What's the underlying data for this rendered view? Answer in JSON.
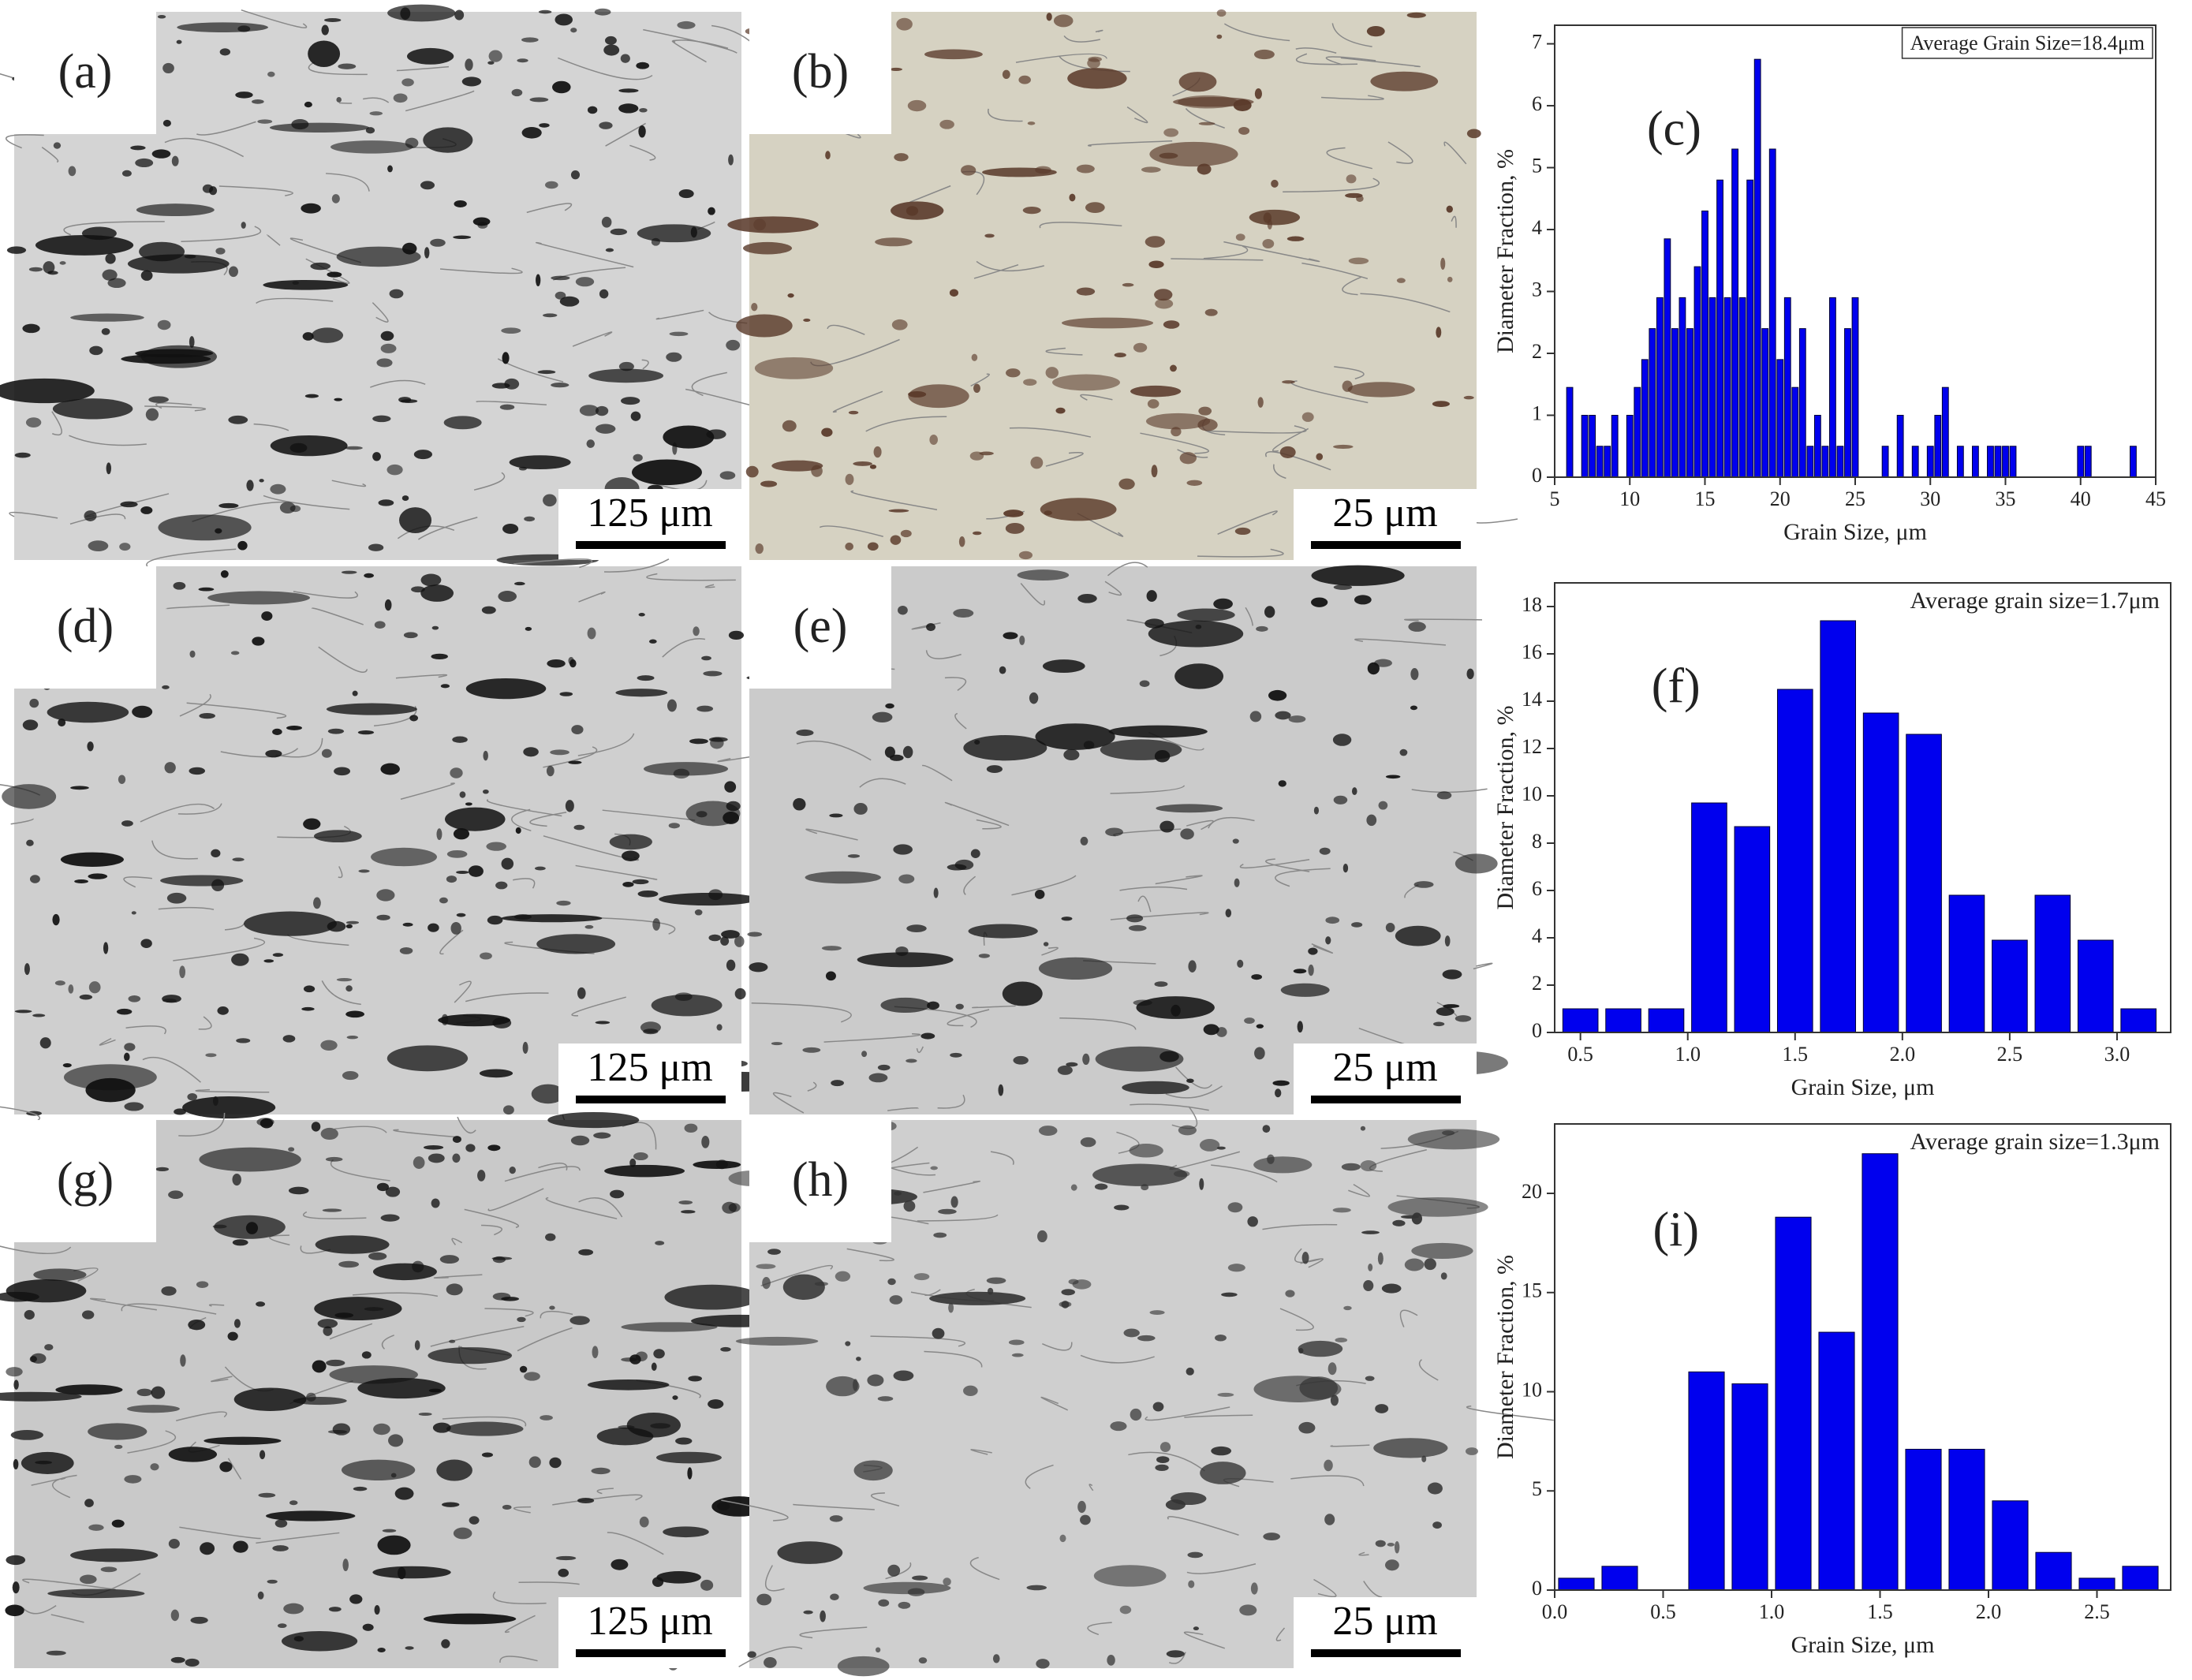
{
  "micrographs": [
    {
      "label": "(a)",
      "scale_bar": "125 μm"
    },
    {
      "label": "(b)",
      "scale_bar": "25 μm"
    },
    {
      "label": "(d)",
      "scale_bar": "125 μm"
    },
    {
      "label": "(e)",
      "scale_bar": "25 μm"
    },
    {
      "label": "(g)",
      "scale_bar": "125 μm"
    },
    {
      "label": "(h)",
      "scale_bar": "25 μm"
    }
  ],
  "chart_data": [
    {
      "type": "bar",
      "panel_label": "(c)",
      "annotation": "Average Grain Size=18.4μm",
      "annotation_box": true,
      "xlabel": "Grain Size, μm",
      "ylabel": "Diameter Fraction, %",
      "color": "#0000ee",
      "x": [
        6,
        7,
        7.5,
        8,
        8.5,
        9,
        10,
        10.5,
        11,
        11.5,
        12,
        12.5,
        13,
        13.5,
        14,
        14.5,
        15,
        15.5,
        16,
        16.5,
        17,
        17.5,
        18,
        18.5,
        19,
        19.5,
        20,
        20.5,
        21,
        21.5,
        22,
        22.5,
        23,
        23.5,
        24,
        24.5,
        25,
        27,
        28,
        29,
        30,
        30.5,
        31,
        32,
        33,
        34,
        34.5,
        35,
        35.5,
        40,
        40.5,
        43.5
      ],
      "values": [
        1.45,
        1.0,
        1.0,
        0.5,
        0.5,
        1.0,
        1.0,
        1.45,
        1.9,
        2.4,
        2.9,
        3.85,
        2.4,
        2.9,
        2.4,
        3.4,
        4.3,
        2.9,
        4.8,
        2.9,
        5.3,
        2.9,
        4.8,
        6.75,
        2.4,
        5.3,
        1.9,
        2.9,
        1.45,
        2.4,
        0.5,
        1.0,
        0.5,
        2.9,
        0.5,
        2.4,
        2.9,
        0.5,
        1.0,
        0.5,
        0.5,
        1.0,
        1.45,
        0.5,
        0.5,
        0.5,
        0.5,
        0.5,
        0.5,
        0.5,
        0.5,
        0.5
      ],
      "xlim": [
        5,
        45
      ],
      "ylim": [
        0,
        7.3
      ],
      "xticks": [
        5,
        10,
        15,
        20,
        25,
        30,
        35,
        40,
        45
      ],
      "yticks": [
        0,
        1,
        2,
        3,
        4,
        5,
        6,
        7
      ]
    },
    {
      "type": "bar",
      "panel_label": "(f)",
      "annotation": "Average grain size=1.7μm",
      "annotation_box": false,
      "xlabel": "Grain Size, μm",
      "ylabel": "Diameter Fraction, %",
      "color": "#0000ee",
      "x": [
        0.5,
        0.7,
        0.9,
        1.1,
        1.3,
        1.5,
        1.7,
        1.9,
        2.1,
        2.3,
        2.5,
        2.7,
        2.9,
        3.1
      ],
      "values": [
        1,
        1,
        1,
        9.7,
        8.7,
        14.5,
        17.4,
        13.5,
        12.6,
        5.8,
        3.9,
        5.8,
        3.9,
        1
      ],
      "xlim": [
        0.38,
        3.25
      ],
      "ylim": [
        0,
        19
      ],
      "xticks": [
        0.5,
        {
          "value": 1,
          "label": "1.0"
        },
        1.5,
        {
          "value": 2,
          "label": "2.0"
        },
        2.5,
        {
          "value": 3,
          "label": "3.0"
        }
      ],
      "yticks": [
        0,
        2,
        4,
        6,
        8,
        10,
        12,
        14,
        16,
        18
      ]
    },
    {
      "type": "bar",
      "panel_label": "(i)",
      "annotation": "Average grain size=1.3μm",
      "annotation_box": false,
      "xlabel": "Grain Size, μm",
      "ylabel": "Diameter Fraction, %",
      "color": "#0000ee",
      "x": [
        0.1,
        0.3,
        0.7,
        0.9,
        1.1,
        1.3,
        1.5,
        1.7,
        1.9,
        2.1,
        2.3,
        2.5,
        2.7
      ],
      "values": [
        0.6,
        1.2,
        11,
        10.4,
        18.8,
        13,
        22,
        7.1,
        7.1,
        4.5,
        1.9,
        0.6,
        1.2
      ],
      "xlim": [
        0,
        2.84
      ],
      "ylim": [
        0,
        23.5
      ],
      "xticks": [
        {
          "value": 0,
          "label": "0.0"
        },
        0.5,
        {
          "value": 1,
          "label": "1.0"
        },
        1.5,
        {
          "value": 2,
          "label": "2.0"
        },
        2.5
      ],
      "yticks": [
        0,
        5,
        10,
        15,
        20
      ]
    }
  ]
}
